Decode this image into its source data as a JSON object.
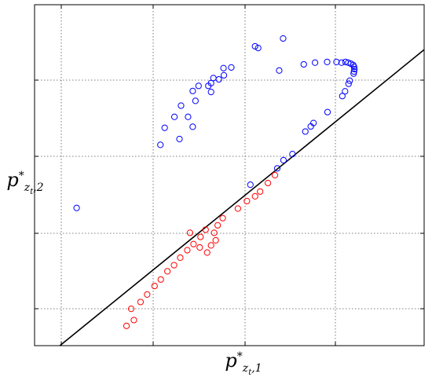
{
  "chart_data": {
    "type": "scatter",
    "xlabel": "",
    "ylabel": "",
    "xlim": [
      0,
      100
    ],
    "ylim": [
      0,
      100
    ],
    "grid": true,
    "colors": {
      "blue": "#0000ff",
      "red": "#ff0000",
      "line": "#000000"
    },
    "series": [
      {
        "marker": "circle-open",
        "color": "blue",
        "points": [
          [
            10.8,
            40.4
          ],
          [
            32.3,
            58.9
          ],
          [
            33.4,
            63.9
          ],
          [
            37.2,
            60.6
          ],
          [
            37.6,
            70.4
          ],
          [
            35.9,
            67.1
          ],
          [
            39.4,
            67.1
          ],
          [
            40.6,
            74.7
          ],
          [
            40.6,
            64.2
          ],
          [
            41.3,
            71.8
          ],
          [
            42.1,
            76.2
          ],
          [
            45.3,
            74.4
          ],
          [
            44.6,
            76.2
          ],
          [
            45.9,
            78.5
          ],
          [
            45.3,
            77.0
          ],
          [
            47.3,
            78.1
          ],
          [
            48.6,
            79.3
          ],
          [
            48.5,
            81.4
          ],
          [
            50.5,
            81.6
          ],
          [
            56.6,
            87.8
          ],
          [
            57.4,
            87.3
          ],
          [
            62.8,
            80.7
          ],
          [
            63.8,
            90.1
          ],
          [
            69.1,
            82.5
          ],
          [
            72.0,
            83.0
          ],
          [
            75.1,
            83.2
          ],
          [
            77.5,
            83.2
          ],
          [
            78.8,
            83.0
          ],
          [
            79.8,
            83.2
          ],
          [
            80.5,
            83.0
          ],
          [
            81.2,
            82.7
          ],
          [
            81.8,
            82.3
          ],
          [
            82.0,
            81.8
          ],
          [
            82.1,
            81.1
          ],
          [
            82.0,
            80.4
          ],
          [
            81.9,
            79.8
          ],
          [
            80.9,
            77.7
          ],
          [
            80.6,
            76.8
          ],
          [
            79.7,
            74.6
          ],
          [
            79.0,
            73.2
          ],
          [
            75.2,
            68.5
          ],
          [
            71.6,
            65.3
          ],
          [
            70.9,
            64.3
          ],
          [
            69.5,
            62.8
          ],
          [
            66.2,
            56.2
          ],
          [
            63.9,
            54.4
          ],
          [
            62.3,
            52.0
          ],
          [
            55.4,
            47.2
          ]
        ]
      },
      {
        "marker": "circle-open",
        "color": "red",
        "points": [
          [
            23.6,
            5.8
          ],
          [
            24.8,
            10.8
          ],
          [
            25.5,
            7.5
          ],
          [
            27.2,
            12.8
          ],
          [
            28.9,
            15.0
          ],
          [
            30.8,
            17.5
          ],
          [
            32.4,
            19.4
          ],
          [
            34.1,
            21.8
          ],
          [
            35.8,
            23.6
          ],
          [
            37.4,
            25.8
          ],
          [
            39.2,
            28.0
          ],
          [
            40.8,
            29.8
          ],
          [
            42.6,
            31.9
          ],
          [
            43.9,
            34.0
          ],
          [
            42.4,
            28.8
          ],
          [
            44.3,
            27.3
          ],
          [
            45.3,
            29.4
          ],
          [
            46.5,
            30.9
          ],
          [
            46.1,
            33.1
          ],
          [
            47.0,
            35.3
          ],
          [
            48.3,
            37.4
          ],
          [
            39.9,
            33.1
          ],
          [
            52.2,
            40.2
          ],
          [
            54.5,
            42.4
          ],
          [
            56.6,
            43.8
          ],
          [
            57.9,
            45.2
          ],
          [
            59.9,
            47.7
          ],
          [
            61.7,
            50.0
          ]
        ]
      }
    ],
    "reference_line": {
      "x": [
        0,
        100
      ],
      "y": [
        0,
        100
      ]
    }
  }
}
